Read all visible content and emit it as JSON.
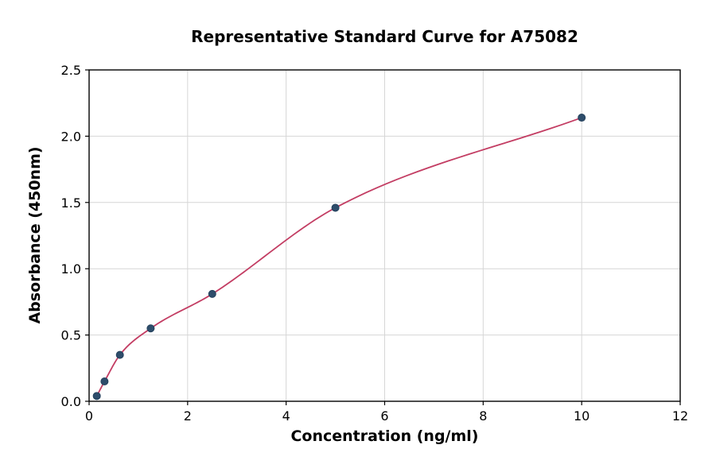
{
  "chart_data": {
    "type": "scatter",
    "title": "Representative Standard Curve for A75082",
    "xlabel": "Concentration (ng/ml)",
    "ylabel": "Absorbance (450nm)",
    "xlim": [
      0,
      12
    ],
    "ylim": [
      0,
      2.5
    ],
    "xticks": [
      0,
      2,
      4,
      6,
      8,
      10,
      12
    ],
    "xtick_labels": [
      "0",
      "2",
      "4",
      "6",
      "8",
      "10",
      "12"
    ],
    "yticks": [
      0,
      0.5,
      1.0,
      1.5,
      2.0,
      2.5
    ],
    "ytick_labels": [
      "0.0",
      "0.5",
      "1.0",
      "1.5",
      "2.0",
      "2.5"
    ],
    "grid": true,
    "points": [
      {
        "x": 0.156,
        "y": 0.04
      },
      {
        "x": 0.313,
        "y": 0.15
      },
      {
        "x": 0.625,
        "y": 0.35
      },
      {
        "x": 1.25,
        "y": 0.55
      },
      {
        "x": 2.5,
        "y": 0.81
      },
      {
        "x": 5,
        "y": 1.46
      },
      {
        "x": 10,
        "y": 2.14
      }
    ],
    "point_color": "#2e4d6b",
    "point_edge_color": "#24415c",
    "line_color": "#c33d63",
    "grid_color": "#d6d6d6",
    "axis_color": "#000000",
    "background_color": "#ffffff"
  }
}
